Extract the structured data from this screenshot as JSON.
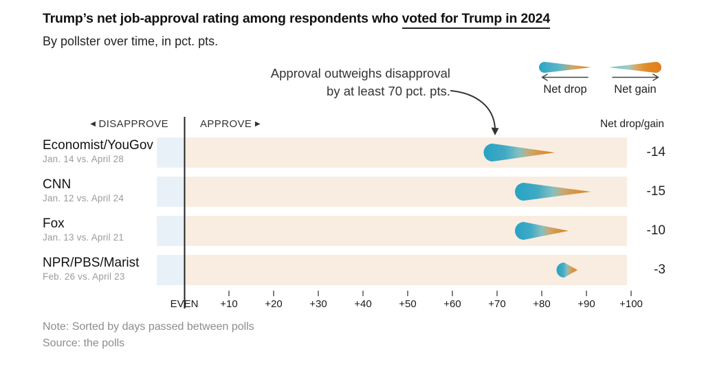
{
  "header": {
    "title_plain": "Trump’s net job-approval rating among respondents who ",
    "title_underlined": "voted for Trump in 2024",
    "subtitle": "By pollster over time, in pct. pts."
  },
  "annotation": {
    "line1": "Approval outweighs disapproval",
    "line2": "by at least 70 pct. pts."
  },
  "legend": {
    "drop": {
      "label": "Net drop",
      "icon": "comet-drop-icon",
      "arrow_icon": "left-arrow"
    },
    "gain": {
      "label": "Net gain",
      "icon": "comet-gain-icon",
      "arrow_icon": "right-arrow"
    }
  },
  "axis_header": {
    "disapprove_icon": "◀",
    "disapprove": "DISAPPROVE",
    "approve": "APPROVE",
    "approve_icon": "▶",
    "net": "Net drop/gain"
  },
  "chart_data": {
    "type": "comet",
    "title": "Trump’s net job-approval rating among respondents who voted for Trump in 2024",
    "subtitle": "By pollster over time, in pct. pts.",
    "unit": "pct. pts.",
    "note": "Sorted by days passed between polls",
    "x_axis": {
      "tick_labels": [
        "EVEN",
        "+10",
        "+20",
        "+30",
        "+40",
        "+50",
        "+60",
        "+70",
        "+80",
        "+90",
        "+100"
      ],
      "tick_values": [
        0,
        10,
        20,
        30,
        40,
        50,
        60,
        70,
        80,
        90,
        100
      ],
      "range": [
        0,
        100
      ],
      "left_zone": "DISAPPROVE",
      "right_zone": "APPROVE"
    },
    "rows": [
      {
        "pollster": "Economist/YouGov",
        "dates": "Jan. 14 vs. April 28",
        "start": 83,
        "end": 69,
        "net": "-14",
        "head_r": 13
      },
      {
        "pollster": "CNN",
        "dates": "Jan. 12 vs. April 24",
        "start": 91,
        "end": 76,
        "net": "-15",
        "head_r": 13
      },
      {
        "pollster": "Fox",
        "dates": "Jan. 13 vs. April 21",
        "start": 86,
        "end": 76,
        "net": "-10",
        "head_r": 13
      },
      {
        "pollster": "NPR/PBS/Marist",
        "dates": "Feb. 26 vs. April 23",
        "start": 88,
        "end": 85,
        "net": "-3",
        "head_r": 11
      }
    ],
    "colors": {
      "teal": "#26a3c4",
      "orange": "#dc851f",
      "band_approve": "#f9ede1",
      "band_disapprove": "#e9f1f8",
      "axis": "#222222"
    }
  },
  "footer": {
    "note": "Note: Sorted by days passed between polls",
    "source": "Source: the polls"
  }
}
